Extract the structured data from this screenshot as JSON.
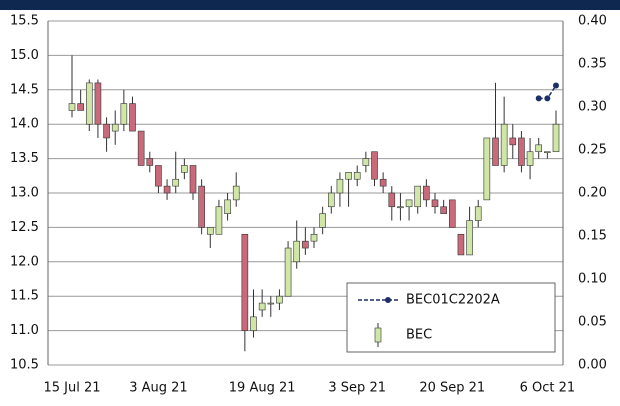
{
  "chart_data": {
    "type": "candlestick",
    "categories": [
      "15 Jul 21",
      null,
      null,
      null,
      null,
      null,
      null,
      null,
      null,
      null,
      "3 Aug 21",
      null,
      null,
      null,
      null,
      null,
      null,
      null,
      null,
      null,
      null,
      null,
      "19 Aug 21",
      null,
      null,
      null,
      null,
      null,
      null,
      null,
      null,
      null,
      null,
      "3 Sep 21",
      null,
      null,
      null,
      null,
      null,
      null,
      null,
      null,
      null,
      null,
      "20 Sep 21",
      null,
      null,
      null,
      null,
      null,
      null,
      null,
      null,
      null,
      null,
      "6 Oct 21",
      null
    ],
    "series": [
      {
        "name": "BEC",
        "up_color": "#cfe6a6",
        "down_color": "#c96a7a",
        "open": [
          14.2,
          14.3,
          14.0,
          14.6,
          14.0,
          13.9,
          14.0,
          14.3,
          13.9,
          13.5,
          13.4,
          13.1,
          13.1,
          13.3,
          13.4,
          13.1,
          12.4,
          12.4,
          12.7,
          12.9,
          12.4,
          11.0,
          11.3,
          11.4,
          11.4,
          11.5,
          12.0,
          12.3,
          12.3,
          12.5,
          12.8,
          13.0,
          13.2,
          13.2,
          13.4,
          13.6,
          13.2,
          13.0,
          12.8,
          12.8,
          12.8,
          13.1,
          12.9,
          12.8,
          12.9,
          12.4,
          12.1,
          12.6,
          12.9,
          13.8,
          13.4,
          13.8,
          13.8,
          13.4,
          13.6,
          13.6,
          13.6
        ],
        "high": [
          15.0,
          14.5,
          14.65,
          14.65,
          14.1,
          14.2,
          14.5,
          14.4,
          13.9,
          13.6,
          13.4,
          13.2,
          13.6,
          13.5,
          13.4,
          13.2,
          12.5,
          12.9,
          13.0,
          13.3,
          12.4,
          11.6,
          11.6,
          11.5,
          11.6,
          12.3,
          12.6,
          12.5,
          12.5,
          12.8,
          13.1,
          13.3,
          13.3,
          13.4,
          13.6,
          13.6,
          13.3,
          13.1,
          13.0,
          12.9,
          13.1,
          13.2,
          13.0,
          12.9,
          12.9,
          12.4,
          12.8,
          12.9,
          13.8,
          14.6,
          14.4,
          14.0,
          13.9,
          13.8,
          13.8,
          13.6,
          14.2
        ],
        "low": [
          14.1,
          14.2,
          13.9,
          13.8,
          13.6,
          13.7,
          13.9,
          13.9,
          13.4,
          13.3,
          13.0,
          12.9,
          13.0,
          13.2,
          12.9,
          12.4,
          12.2,
          12.4,
          12.6,
          12.8,
          10.7,
          10.9,
          11.2,
          11.2,
          11.3,
          11.5,
          11.9,
          12.1,
          12.2,
          12.4,
          12.7,
          12.8,
          12.8,
          13.1,
          13.3,
          13.1,
          13.0,
          12.6,
          12.6,
          12.6,
          12.7,
          12.8,
          12.7,
          12.7,
          12.5,
          12.1,
          12.1,
          12.5,
          12.9,
          13.4,
          13.3,
          13.5,
          13.3,
          13.2,
          13.5,
          13.5,
          13.6
        ],
        "close": [
          14.3,
          14.2,
          14.6,
          14.0,
          13.8,
          14.0,
          14.3,
          13.9,
          13.4,
          13.4,
          13.1,
          13.0,
          13.2,
          13.4,
          13.0,
          12.5,
          12.5,
          12.8,
          12.9,
          13.1,
          11.0,
          11.2,
          11.4,
          11.4,
          11.5,
          12.2,
          12.3,
          12.2,
          12.4,
          12.7,
          13.0,
          13.2,
          13.3,
          13.3,
          13.5,
          13.2,
          13.1,
          12.8,
          12.8,
          12.9,
          13.1,
          12.9,
          12.8,
          12.7,
          12.5,
          12.1,
          12.6,
          12.8,
          13.8,
          13.4,
          14.0,
          13.7,
          13.4,
          13.6,
          13.7,
          13.6,
          14.0
        ]
      },
      {
        "name": "BEC01C2202A",
        "type": "line",
        "axis": "y2",
        "color": "#1c2f66",
        "values": [
          null,
          null,
          null,
          null,
          null,
          null,
          null,
          null,
          null,
          null,
          null,
          null,
          null,
          null,
          null,
          null,
          null,
          null,
          null,
          null,
          null,
          null,
          null,
          null,
          null,
          null,
          null,
          null,
          null,
          null,
          null,
          null,
          null,
          null,
          null,
          null,
          null,
          null,
          null,
          null,
          null,
          null,
          null,
          null,
          null,
          null,
          null,
          null,
          null,
          null,
          null,
          null,
          null,
          null,
          0.31,
          0.31,
          0.325
        ]
      }
    ],
    "ylim": [
      10.5,
      15.5
    ],
    "yticks": [
      10.5,
      {
        "value": 11,
        "label": "11.0"
      },
      11.5,
      {
        "value": 12,
        "label": "12.0"
      },
      12.5,
      {
        "value": 13,
        "label": "13.0"
      },
      13.5,
      {
        "value": 14,
        "label": "14.0"
      },
      14.5,
      {
        "value": 15,
        "label": "15.0"
      },
      15.5
    ],
    "y2lim": [
      0,
      0.4
    ],
    "y2ticks": [
      {
        "value": 0,
        "label": "0.00"
      },
      0.05,
      {
        "value": 0.1,
        "label": "0.10"
      },
      0.15,
      {
        "value": 0.2,
        "label": "0.20"
      },
      0.25,
      {
        "value": 0.3,
        "label": "0.30"
      },
      0.35,
      {
        "value": 0.4,
        "label": "0.40"
      }
    ],
    "grid": true,
    "legend": "lower right"
  }
}
